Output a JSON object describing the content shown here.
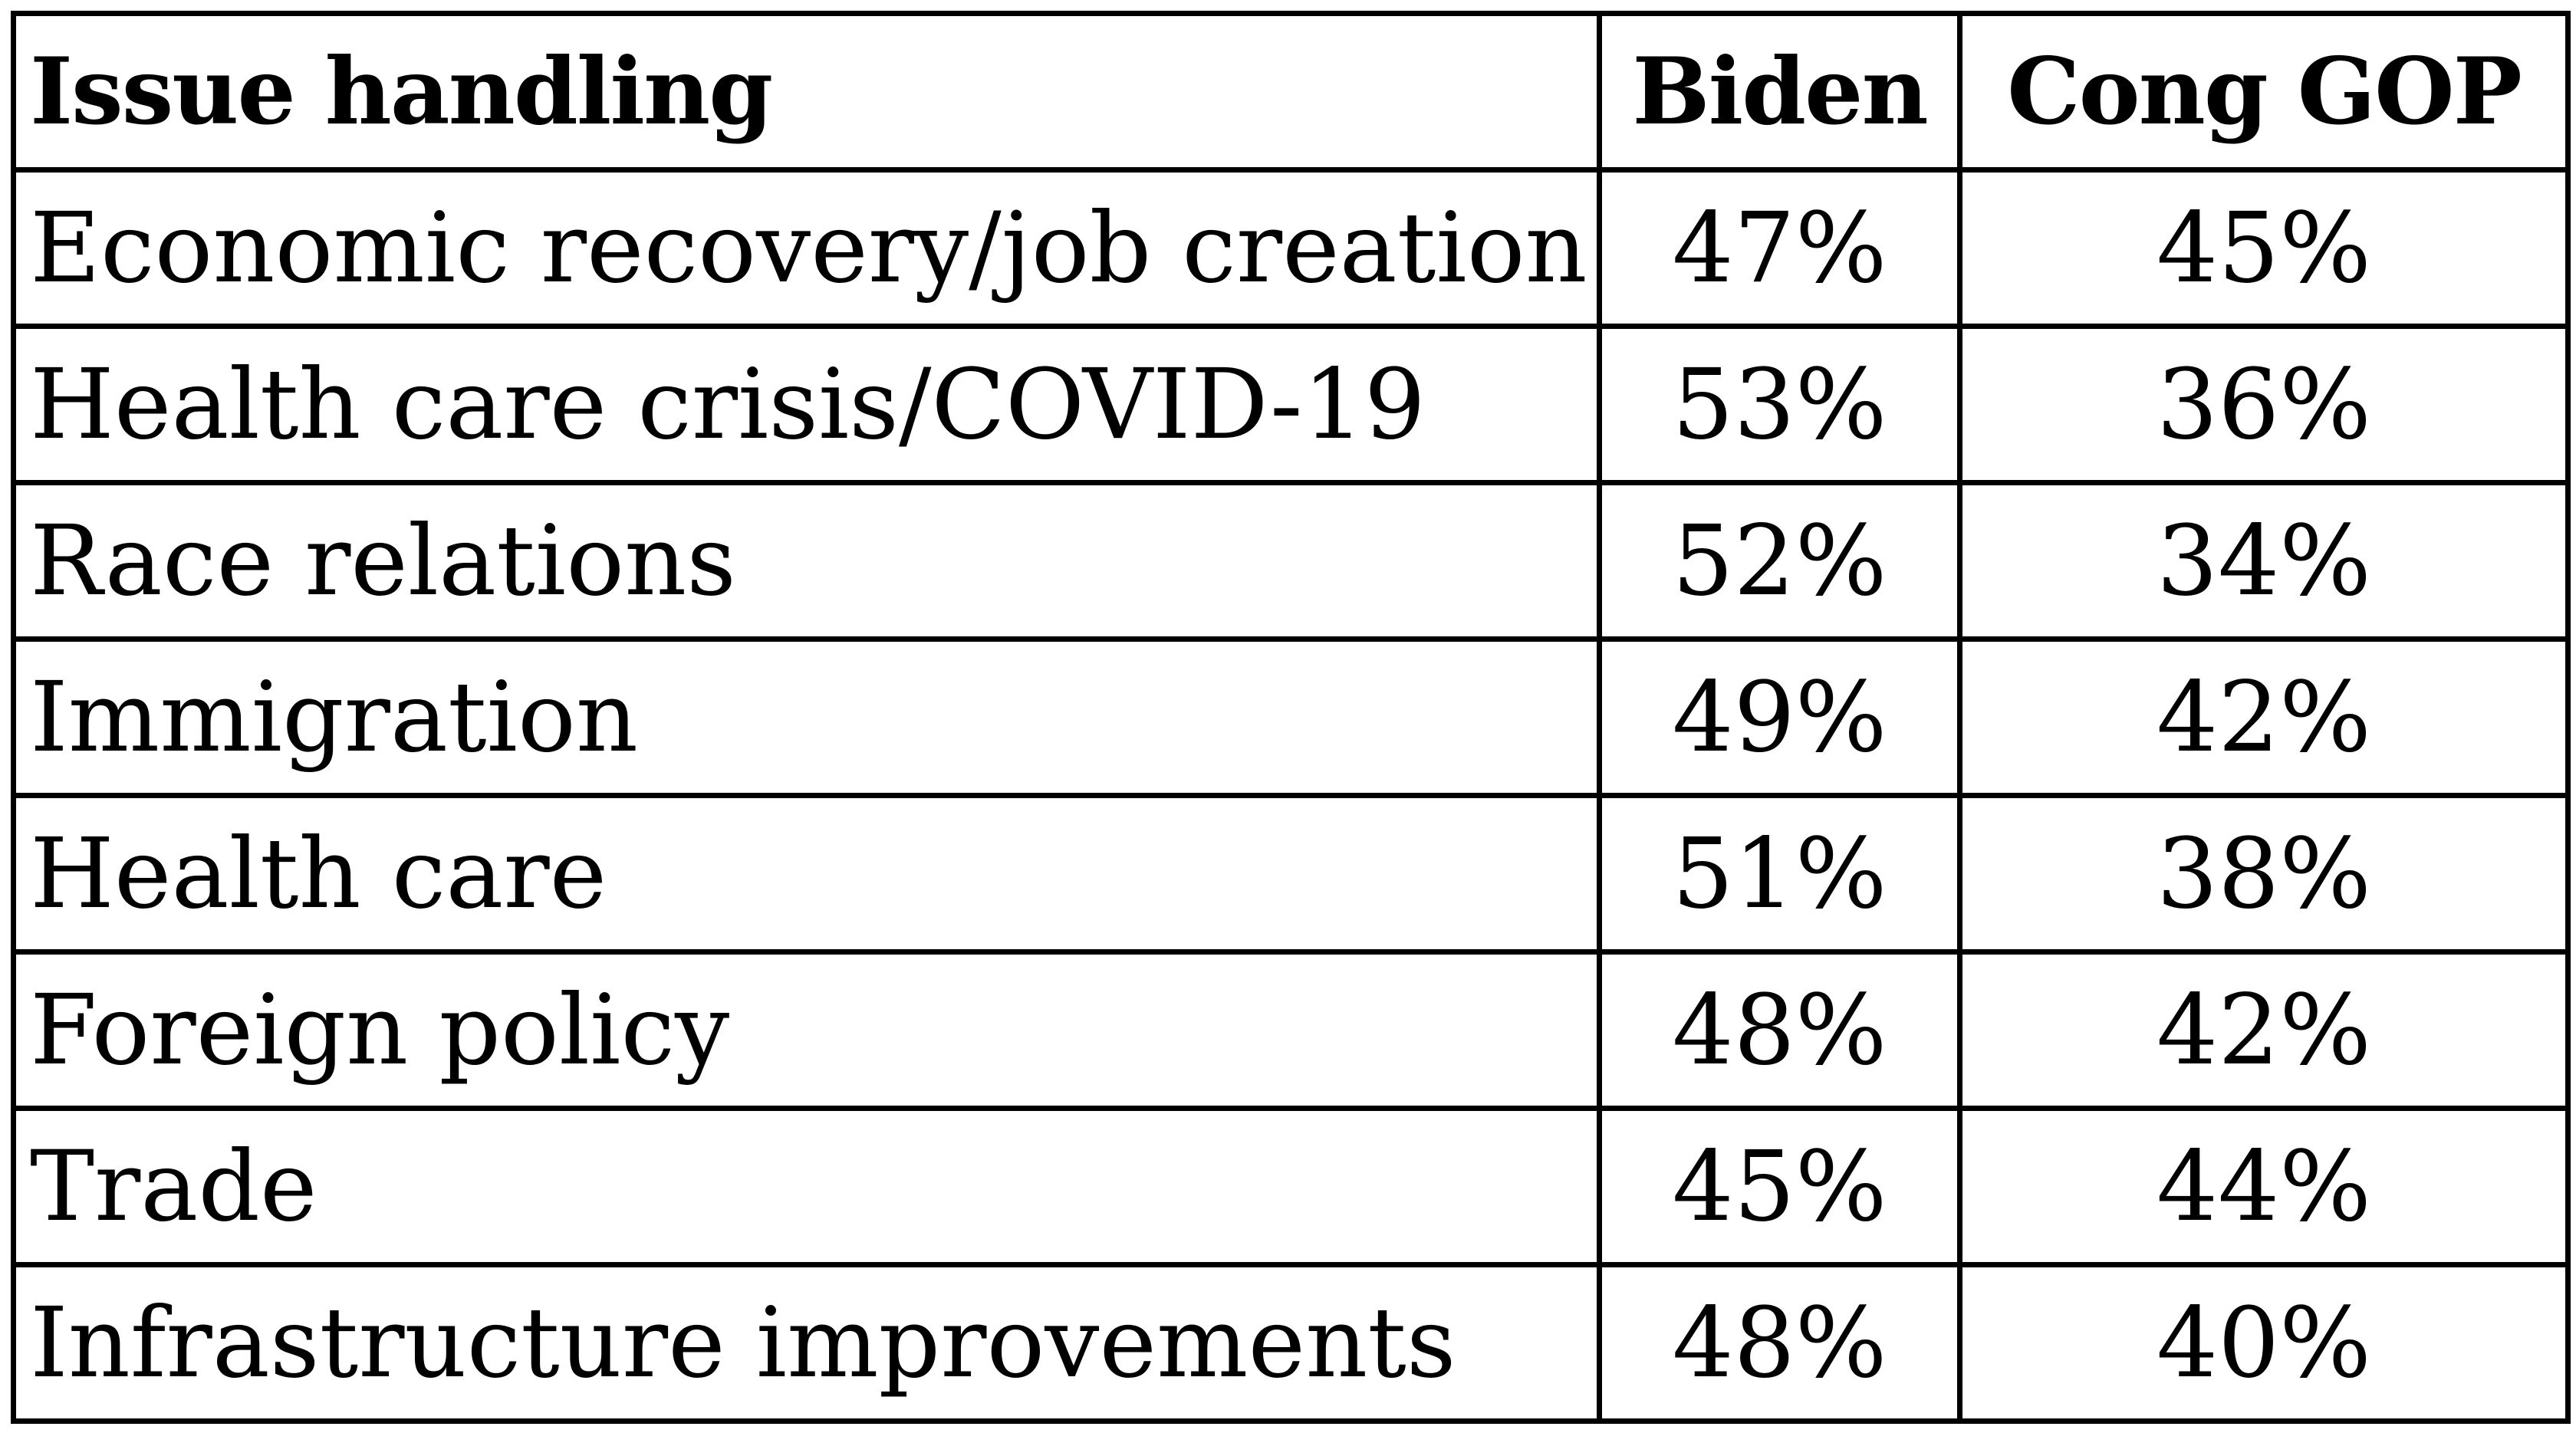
{
  "chart_data": {
    "type": "table",
    "columns": [
      "Issue handling",
      "Biden",
      "Cong GOP"
    ],
    "rows": [
      {
        "issue": "Economic recovery/job creation",
        "biden": "47%",
        "gop": "45%"
      },
      {
        "issue": "Health care crisis/COVID-19",
        "biden": "53%",
        "gop": "36%"
      },
      {
        "issue": "Race relations",
        "biden": "52%",
        "gop": "34%"
      },
      {
        "issue": "Immigration",
        "biden": "49%",
        "gop": "42%"
      },
      {
        "issue": "Health care",
        "biden": "51%",
        "gop": "38%"
      },
      {
        "issue": "Foreign policy",
        "biden": "48%",
        "gop": "42%"
      },
      {
        "issue": "Trade",
        "biden": "45%",
        "gop": "44%"
      },
      {
        "issue": "Infrastructure improvements",
        "biden": "48%",
        "gop": "40%"
      }
    ],
    "series": [
      {
        "name": "Biden",
        "values": [
          47,
          53,
          52,
          49,
          51,
          48,
          45,
          48
        ]
      },
      {
        "name": "Cong GOP",
        "values": [
          45,
          36,
          34,
          42,
          38,
          42,
          44,
          40
        ]
      }
    ],
    "categories": [
      "Economic recovery/job creation",
      "Health care crisis/COVID-19",
      "Race relations",
      "Immigration",
      "Health care",
      "Foreign policy",
      "Trade",
      "Infrastructure improvements"
    ]
  }
}
